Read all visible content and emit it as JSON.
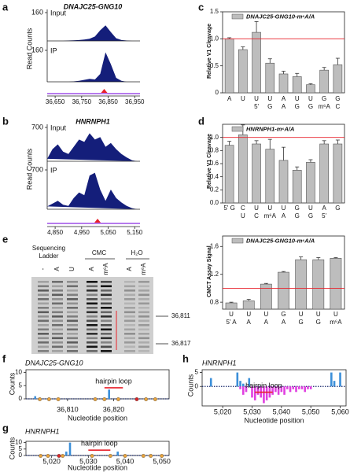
{
  "chart_data": [
    {
      "type": "track",
      "panel": "a",
      "title": "DNAJC25-GNG10",
      "ylabel": "Read Counts",
      "color": "#141e7a",
      "highlight_x": 36835,
      "highlight_color": "#e8202a",
      "x": [
        36620,
        36640,
        36660,
        36680,
        36700,
        36720,
        36740,
        36760,
        36780,
        36800,
        36820,
        36840,
        36860,
        36880,
        36900,
        36920,
        36940,
        36960
      ],
      "xlim": [
        36620,
        36970
      ],
      "xticks": [
        {
          "value": 36650,
          "label": "36,650"
        },
        {
          "value": 36750,
          "label": "36,750"
        },
        {
          "value": 36850,
          "label": "36,850"
        },
        {
          "value": 36950,
          "label": "36,950"
        }
      ],
      "tracks": [
        {
          "name": "Input",
          "ylim": [
            0,
            160
          ],
          "yticks": [
            160
          ],
          "values": [
            0,
            0,
            0,
            0,
            2,
            3,
            5,
            8,
            12,
            25,
            60,
            88,
            50,
            15,
            5,
            2,
            0,
            0
          ]
        },
        {
          "name": "IP",
          "ylim": [
            0,
            160
          ],
          "yticks": [
            160
          ],
          "values": [
            0,
            0,
            0,
            0,
            0,
            2,
            5,
            10,
            15,
            12,
            40,
            150,
            90,
            20,
            5,
            0,
            0,
            0
          ]
        }
      ]
    },
    {
      "type": "track",
      "panel": "b",
      "title": "HNRNPH1",
      "ylabel": "Read Counts",
      "color": "#141e7a",
      "highlight_x": 5010,
      "highlight_color": "#e8202a",
      "x": [
        4820,
        4840,
        4860,
        4880,
        4900,
        4920,
        4940,
        4960,
        4980,
        5000,
        5020,
        5040,
        5060,
        5080,
        5100,
        5120,
        5140,
        5160
      ],
      "xlim": [
        4820,
        5170
      ],
      "xticks": [
        {
          "value": 4850,
          "label": "4,850"
        },
        {
          "value": 4950,
          "label": "4,950"
        },
        {
          "value": 5050,
          "label": "5,050"
        },
        {
          "value": 5150,
          "label": "5,150"
        }
      ],
      "tracks": [
        {
          "name": "Input",
          "ylim": [
            0,
            700
          ],
          "yticks": [
            700
          ],
          "values": [
            50,
            250,
            350,
            200,
            150,
            300,
            450,
            400,
            580,
            450,
            500,
            300,
            380,
            250,
            150,
            80,
            20,
            0
          ]
        },
        {
          "name": "IP",
          "ylim": [
            0,
            700
          ],
          "yticks": [
            700
          ],
          "values": [
            50,
            100,
            150,
            80,
            60,
            200,
            300,
            250,
            600,
            650,
            350,
            150,
            350,
            200,
            120,
            60,
            20,
            0
          ]
        }
      ]
    },
    {
      "type": "bar",
      "panel": "c",
      "ylabel": "Relative V1 Cleavage",
      "legend": "DNAJC25-GNG10-m⁶A/A",
      "color": "#bdbdbd",
      "reference_line": 1,
      "reference_color": "#e8202a",
      "categories": [
        "A",
        "U",
        "U",
        "U",
        "A",
        "U",
        "U",
        "G",
        "G"
      ],
      "categories_sub": [
        null,
        null,
        "5'",
        "G",
        "A",
        "G",
        "G",
        "m⁶A",
        "C"
      ],
      "values": [
        1.0,
        0.8,
        1.12,
        0.55,
        0.35,
        0.3,
        0.15,
        0.42,
        0.52
      ],
      "errors": [
        0.02,
        0.05,
        0.2,
        0.08,
        0.05,
        0.06,
        0.02,
        0.05,
        0.12
      ],
      "ylim": [
        0,
        1.5
      ],
      "yticks": [
        0,
        0.5,
        {
          "value": 1,
          "label": "1.0"
        },
        1.5
      ]
    },
    {
      "type": "bar",
      "panel": "d",
      "ylabel": "Relative V1 Cleavage",
      "legend": "HNRNPH1-m⁶A/A",
      "color": "#bdbdbd",
      "reference_line": 1,
      "reference_color": "#e8202a",
      "categories": [
        "5' G",
        "C",
        "U",
        "U",
        "U",
        "G",
        "U",
        "A",
        "G"
      ],
      "categories_sub": [
        null,
        "U",
        "C",
        "m⁶A",
        "A",
        "G",
        "G",
        "5'",
        null
      ],
      "values": [
        0.88,
        1.04,
        0.9,
        0.82,
        0.65,
        0.5,
        0.62,
        0.9,
        0.9
      ],
      "errors": [
        0.06,
        0.15,
        0.05,
        0.15,
        0.2,
        0.05,
        0.04,
        0.05,
        0.06
      ],
      "ylim": [
        0,
        1.2
      ],
      "yticks": [
        {
          "value": 0,
          "label": "0.0"
        },
        0.2,
        0.4,
        0.6,
        0.8,
        {
          "value": 1,
          "label": "1.0"
        }
      ]
    },
    {
      "type": "bar",
      "ylabel": "CMCT Assay Signal",
      "legend": "DNAJC25-GNG10-m⁶A/A",
      "color": "#bdbdbd",
      "reference_line": 1,
      "reference_color": "#e8202a",
      "categories": [
        "U",
        "U",
        "U",
        "G",
        "U",
        "U",
        "U"
      ],
      "categories_sub": [
        "5' A",
        "A",
        "A",
        "A",
        "G",
        "G",
        "m⁶A"
      ],
      "values": [
        0.79,
        0.82,
        1.06,
        1.23,
        1.41,
        1.41,
        1.43
      ],
      "errors": [
        0.01,
        0.02,
        0.01,
        0.01,
        0.04,
        0.03,
        0.01
      ],
      "ylim": [
        0.7,
        1.75
      ],
      "yticks": [
        0.8,
        1.2,
        1.6
      ]
    },
    {
      "type": "counts",
      "panel": "f",
      "title": "DNAJC25-GNG10",
      "ylabel": "Counts",
      "xlabel": "Nucleotide position",
      "annotation": "hairpin loop",
      "annotation_range": [
        36818,
        36822
      ],
      "annotation_color": "#e8202a",
      "xlim": [
        36801,
        36832
      ],
      "xticks": [
        {
          "value": 36810,
          "label": "36,810"
        },
        {
          "value": 36820,
          "label": "36,820"
        }
      ],
      "ylim": [
        0,
        11
      ],
      "yticks": [
        0,
        5,
        10
      ],
      "series": [
        {
          "color": "#3b8fd9",
          "x": [
            36803,
            36819
          ],
          "values": [
            1,
            3.5
          ]
        }
      ],
      "sites": {
        "x": [
          36804,
          36806,
          36808,
          36816,
          36818,
          36821,
          36825,
          36827,
          36829
        ],
        "colors": [
          "#e8a33d",
          "#e8a33d",
          "#e8a33d",
          "#e8a33d",
          "#e8a33d",
          "#e8a33d",
          "#d62728",
          "#e8a33d",
          "#e8a33d"
        ]
      }
    },
    {
      "type": "counts",
      "panel": "g",
      "title": "HNRNPH1",
      "ylabel": "Counts",
      "xlabel": "Nucleotide position",
      "annotation": "hairpin loop",
      "annotation_range": [
        5030,
        5036
      ],
      "annotation_color": "#e8202a",
      "xlim": [
        5013,
        5052
      ],
      "xticks": [
        {
          "value": 5020,
          "label": "5,020"
        },
        {
          "value": 5030,
          "label": "5,030"
        },
        {
          "value": 5040,
          "label": "5,040"
        },
        {
          "value": 5050,
          "label": "5,050"
        }
      ],
      "ylim": [
        0,
        11
      ],
      "yticks": [
        0,
        5,
        10
      ],
      "series": [
        {
          "color": "#3b8fd9",
          "x": [
            5024,
            5025,
            5036,
            5038,
            5045,
            5047
          ],
          "values": [
            3,
            10,
            1,
            3,
            1,
            1
          ]
        }
      ],
      "sites": {
        "x": [
          5017,
          5019,
          5022,
          5023,
          5031,
          5036,
          5040,
          5045,
          5047,
          5050
        ],
        "colors": [
          "#e8a33d",
          "#e8a33d",
          "#d62728",
          "#e8a33d",
          "#e8a33d",
          "#e8a33d",
          "#e8a33d",
          "#e8a33d",
          "#e8a33d",
          "#e8a33d"
        ]
      }
    },
    {
      "type": "counts",
      "panel": "h",
      "title": "HNRNPH1",
      "ylabel": "Counts",
      "xlabel": "Nucleotide position",
      "annotation": "hairpin loop",
      "annotation_range": [
        5031,
        5037
      ],
      "annotation_color": "#e8202a",
      "xlim": [
        5013,
        5062
      ],
      "xticks": [
        {
          "value": 5020,
          "label": "5,020"
        },
        {
          "value": 5030,
          "label": "5,030"
        },
        {
          "value": 5040,
          "label": "5,040"
        },
        {
          "value": 5050,
          "label": "5,050"
        },
        {
          "value": 5060,
          "label": "5,060"
        }
      ],
      "ylim": [
        -7,
        6
      ],
      "yticks": [
        0,
        5
      ],
      "series": [
        {
          "color": "#3b8fd9",
          "x": [
            5016,
            5025,
            5026,
            5027,
            5029,
            5057,
            5058,
            5060
          ],
          "values": [
            3,
            5,
            2,
            1,
            3,
            5,
            2,
            5
          ]
        },
        {
          "color": "#e040e0",
          "x": [
            5026,
            5027,
            5028,
            5030,
            5031,
            5032,
            5033,
            5034,
            5035,
            5036,
            5037,
            5038,
            5039,
            5040,
            5041,
            5042,
            5043,
            5044,
            5045,
            5046,
            5047,
            5048,
            5049,
            5050
          ],
          "values": [
            -1,
            -3,
            -2,
            -4,
            -5,
            -3,
            -4,
            -6,
            -5,
            -4,
            -3,
            -2,
            -3,
            -2,
            -3,
            -1,
            -2,
            -1,
            -2,
            -1,
            -1,
            -2,
            -1,
            -1
          ]
        }
      ]
    }
  ],
  "gel": {
    "panel": "e",
    "ladder_label": [
      "Sequencing",
      "Ladder"
    ],
    "groups": [
      "CMC",
      "H₂O"
    ],
    "lanes": [
      "-",
      "A",
      "U",
      "A",
      "m⁶A",
      "A",
      "m⁶A"
    ],
    "positions": [
      "36,811",
      "36,817"
    ]
  }
}
